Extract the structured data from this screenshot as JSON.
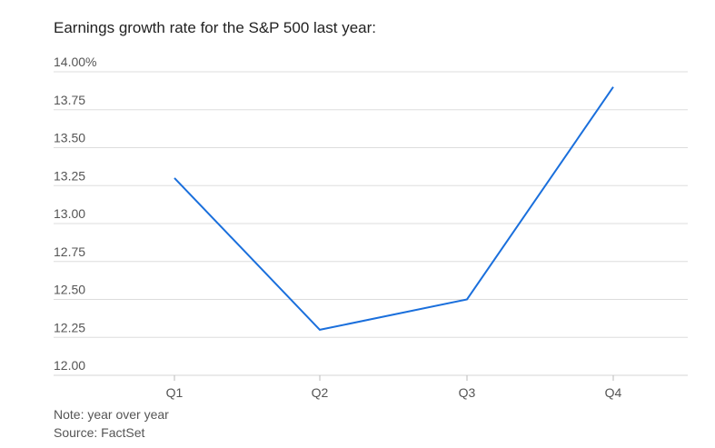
{
  "title": "Earnings growth rate for the S&P 500 last year:",
  "note": "Note: year over year",
  "source": "Source: FactSet",
  "colors": {
    "line": "#1a6fdc",
    "grid": "#dddddd",
    "text": "#555555"
  },
  "chart_data": {
    "type": "line",
    "title": "Earnings growth rate for the S&P 500 last year:",
    "categories": [
      "Q1",
      "Q2",
      "Q3",
      "Q4"
    ],
    "series": [
      {
        "values": [
          13.3,
          12.3,
          12.5,
          13.9
        ]
      }
    ],
    "ylim": [
      12.0,
      14.0
    ],
    "yticks": [
      12.0,
      12.25,
      12.5,
      12.75,
      13.0,
      13.25,
      13.5,
      13.75,
      14.0
    ],
    "ytick_labels": [
      "12.00",
      "12.25",
      "12.50",
      "12.75",
      "13.00",
      "13.25",
      "13.50",
      "13.75",
      "14.00%"
    ],
    "grid": true,
    "legend": "none"
  }
}
